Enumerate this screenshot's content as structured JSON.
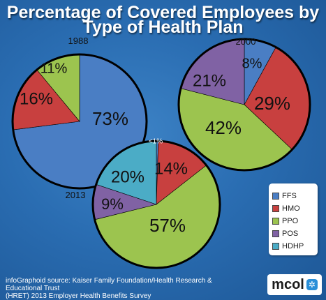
{
  "title_line1": "Percentage of Covered Employees by",
  "title_line2": "Type of Health Plan",
  "chart_data": [
    {
      "type": "pie",
      "label": "1988",
      "slices": [
        {
          "name": "FFS",
          "value": 73,
          "label": "73%"
        },
        {
          "name": "HMO",
          "value": 16,
          "label": "16%"
        },
        {
          "name": "PPO",
          "value": 11,
          "label": "11%"
        }
      ]
    },
    {
      "type": "pie",
      "label": "2000",
      "slices": [
        {
          "name": "FFS",
          "value": 8,
          "label": "8%"
        },
        {
          "name": "HMO",
          "value": 29,
          "label": "29%"
        },
        {
          "name": "PPO",
          "value": 42,
          "label": "42%"
        },
        {
          "name": "POS",
          "value": 21,
          "label": "21%"
        }
      ]
    },
    {
      "type": "pie",
      "label": "2013",
      "slices": [
        {
          "name": "FFS",
          "value": 0.5,
          "label": "<1%"
        },
        {
          "name": "HMO",
          "value": 14,
          "label": "14%"
        },
        {
          "name": "PPO",
          "value": 57,
          "label": "57%"
        },
        {
          "name": "POS",
          "value": 9,
          "label": "9%"
        },
        {
          "name": "HDHP",
          "value": 20,
          "label": "20%"
        }
      ]
    }
  ],
  "legend": [
    {
      "name": "FFS",
      "color": "#4a7ec4"
    },
    {
      "name": "HMO",
      "color": "#c8403f"
    },
    {
      "name": "PPO",
      "color": "#9cc44f"
    },
    {
      "name": "POS",
      "color": "#8062a4"
    },
    {
      "name": "HDHP",
      "color": "#4bacc6"
    }
  ],
  "source_line1": "infoGraphoid source:  Kaiser Family Foundation/Health Research & Educational Trust",
  "source_line2": "(HRET) 2013 Employer Health Benefits Survey",
  "logo_text": "mcol",
  "logo_icon": "gear-icon"
}
